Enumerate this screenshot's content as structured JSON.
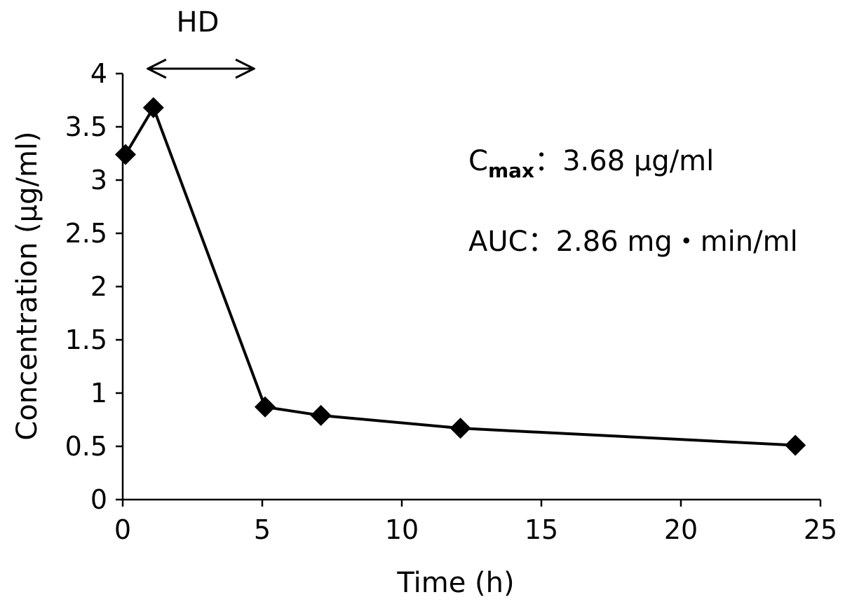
{
  "chart_data": {
    "type": "line",
    "title": "",
    "xlabel": "Time (h)",
    "ylabel": "Concentration (μg/ml)",
    "xlim": [
      0,
      25
    ],
    "ylim": [
      0,
      4
    ],
    "x_ticks": [
      0,
      5,
      10,
      15,
      20,
      25
    ],
    "y_ticks": [
      0,
      0.5,
      1,
      1.5,
      2,
      2.5,
      3,
      3.5,
      4
    ],
    "x_tick_labels": [
      "0",
      "5",
      "10",
      "15",
      "20",
      "25"
    ],
    "y_tick_labels": [
      "0",
      "0.5",
      "1",
      "1.5",
      "2",
      "2.5",
      "3",
      "3.5",
      "4"
    ],
    "grid": false,
    "legend": "none",
    "series": [
      {
        "marker": "diamond",
        "color": "#000000",
        "x": [
          0.1,
          1.1,
          5.1,
          7.1,
          12.1,
          24.1
        ],
        "y": [
          3.24,
          3.68,
          0.87,
          0.79,
          0.67,
          0.51
        ]
      }
    ],
    "annotations": {
      "hd": {
        "label": "HD",
        "x_start": 0.9,
        "x_end": 4.7
      },
      "cmax": {
        "main": "C",
        "sub": "max",
        "value": "3.68 μg/ml"
      },
      "auc": {
        "label": "AUC",
        "value": "2.86 mg・min/ml"
      }
    }
  }
}
